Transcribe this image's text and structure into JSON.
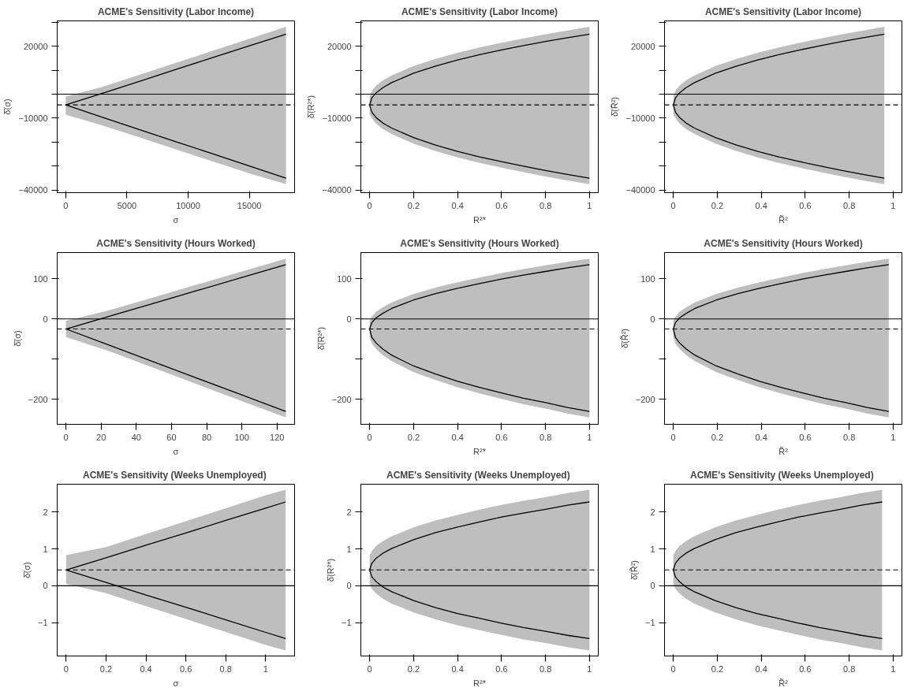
{
  "chart_data": [
    {
      "type": "line",
      "title": "ACME's Sensitivity (Labor Income)",
      "xlabel": "σ",
      "ylabel": "δ̄(σ)",
      "x": [
        0,
        3000,
        6000,
        9000,
        12000,
        15000,
        18000
      ],
      "xlim": [
        -700,
        18700
      ],
      "xticks": [
        0,
        5000,
        10000,
        15000
      ],
      "ylim": [
        -41000,
        30500
      ],
      "yticks": [
        -40000,
        {
          "value": -30000,
          "label": null
        },
        {
          "value": -20000,
          "label": null
        },
        -10000,
        {
          "value": 0,
          "label": null
        },
        {
          "value": 10000,
          "label": null
        },
        20000,
        {
          "value": 30000,
          "label": null
        }
      ],
      "grid": false,
      "series": [
        {
          "color": "#000000",
          "values": [
            -4500,
            400,
            5300,
            10300,
            15200,
            20100,
            25000
          ],
          "lower": [
            -8500,
            -13000,
            -18000,
            -23000,
            -28000,
            -33000,
            -37500
          ],
          "upper": [
            -1000,
            3000,
            8000,
            13000,
            18000,
            23000,
            28000
          ]
        },
        {
          "color": "#000000",
          "values": [
            -4500,
            -9600,
            -14700,
            -19800,
            -24800,
            -29900,
            -35000
          ]
        }
      ],
      "ref_lines": [
        {
          "axis": "y",
          "value": 0,
          "color": "#000000",
          "line_style": "solid"
        },
        {
          "axis": "y",
          "value": -4500,
          "color": "#000000",
          "line_style": "dashed"
        }
      ]
    },
    {
      "type": "line",
      "title": "ACME's Sensitivity (Labor Income)",
      "xlabel": "R²*",
      "ylabel": "δ̄(R²*)",
      "x": [
        0,
        0.01,
        0.03,
        0.06,
        0.1,
        0.2,
        0.3,
        0.4,
        0.5,
        0.6,
        0.7,
        0.8,
        0.9,
        1.0
      ],
      "xlim": [
        -0.04,
        1.04
      ],
      "xticks": [
        0,
        0.2,
        0.4,
        0.6,
        0.8,
        1.0
      ],
      "ylim": [
        -41000,
        30500
      ],
      "yticks": [
        -40000,
        {
          "value": -30000,
          "label": null
        },
        {
          "value": -20000,
          "label": null
        },
        -10000,
        {
          "value": 0,
          "label": null
        },
        {
          "value": 10000,
          "label": null
        },
        20000,
        {
          "value": 30000,
          "label": null
        }
      ],
      "grid": false,
      "series": [
        {
          "color": "#000000",
          "values": [
            -4500,
            -1500,
            600,
            2700,
            4800,
            8700,
            11700,
            14200,
            16400,
            18400,
            20200,
            21900,
            23500,
            25000
          ],
          "lower": [
            -8500,
            -10000,
            -12300,
            -14500,
            -16600,
            -20600,
            -23700,
            -26300,
            -28600,
            -30600,
            -32500,
            -34300,
            -35900,
            -37500
          ],
          "upper": [
            -1000,
            1500,
            3600,
            5700,
            7800,
            11700,
            14700,
            17200,
            19400,
            21400,
            23200,
            24900,
            26500,
            28000
          ]
        },
        {
          "color": "#000000",
          "values": [
            -4500,
            -7500,
            -9800,
            -12000,
            -14100,
            -18100,
            -21200,
            -23800,
            -26100,
            -28100,
            -30000,
            -31800,
            -33400,
            -35000
          ]
        }
      ],
      "ref_lines": [
        {
          "axis": "y",
          "value": 0,
          "color": "#000000",
          "line_style": "solid"
        },
        {
          "axis": "y",
          "value": -4500,
          "color": "#000000",
          "line_style": "dashed"
        }
      ]
    },
    {
      "type": "line",
      "title": "ACME's Sensitivity (Labor Income)",
      "xlabel": "R̃²",
      "ylabel": "δ̄(R̃²)",
      "x": [
        0,
        0.01,
        0.029,
        0.058,
        0.096,
        0.192,
        0.288,
        0.384,
        0.48,
        0.576,
        0.672,
        0.768,
        0.864,
        0.96
      ],
      "xlim": [
        -0.04,
        1.04
      ],
      "xticks": [
        0,
        0.2,
        0.4,
        0.6,
        0.8,
        1.0
      ],
      "ylim": [
        -41000,
        30500
      ],
      "yticks": [
        -40000,
        {
          "value": -30000,
          "label": null
        },
        {
          "value": -20000,
          "label": null
        },
        -10000,
        {
          "value": 0,
          "label": null
        },
        {
          "value": 10000,
          "label": null
        },
        20000,
        {
          "value": 30000,
          "label": null
        }
      ],
      "grid": false,
      "series": [
        {
          "color": "#000000",
          "values": [
            -4500,
            -1500,
            600,
            2700,
            4800,
            8700,
            11700,
            14200,
            16400,
            18400,
            20200,
            21900,
            23500,
            25000
          ],
          "lower": [
            -8500,
            -10000,
            -12300,
            -14500,
            -16600,
            -20600,
            -23700,
            -26300,
            -28600,
            -30600,
            -32500,
            -34300,
            -35900,
            -37500
          ],
          "upper": [
            -1000,
            1500,
            3600,
            5700,
            7800,
            11700,
            14700,
            17200,
            19400,
            21400,
            23200,
            24900,
            26500,
            28000
          ]
        },
        {
          "color": "#000000",
          "values": [
            -4500,
            -7500,
            -9800,
            -12000,
            -14100,
            -18100,
            -21200,
            -23800,
            -26100,
            -28100,
            -30000,
            -31800,
            -33400,
            -35000
          ]
        }
      ],
      "ref_lines": [
        {
          "axis": "y",
          "value": 0,
          "color": "#000000",
          "line_style": "solid"
        },
        {
          "axis": "y",
          "value": -4500,
          "color": "#000000",
          "line_style": "dashed"
        }
      ]
    },
    {
      "type": "line",
      "title": "ACME's Sensitivity (Hours Worked)",
      "xlabel": "σ",
      "ylabel": "δ̄(σ)",
      "x": [
        0,
        25,
        50,
        75,
        100,
        125
      ],
      "xlim": [
        -5,
        130
      ],
      "xticks": [
        0,
        20,
        40,
        60,
        80,
        100,
        120
      ],
      "ylim": [
        -262,
        165
      ],
      "yticks": [
        -200,
        {
          "value": -100,
          "label": null
        },
        0,
        100
      ],
      "grid": false,
      "series": [
        {
          "color": "#000000",
          "values": [
            -25,
            7,
            39,
            71,
            103,
            135
          ],
          "lower": [
            -45,
            -81,
            -122,
            -163,
            -204,
            -245
          ],
          "upper": [
            -5,
            22,
            54,
            86,
            118,
            150
          ]
        },
        {
          "color": "#000000",
          "values": [
            -25,
            -66,
            -107,
            -148,
            -189,
            -230
          ]
        }
      ],
      "ref_lines": [
        {
          "axis": "y",
          "value": 0,
          "color": "#000000",
          "line_style": "solid"
        },
        {
          "axis": "y",
          "value": -25,
          "color": "#000000",
          "line_style": "dashed"
        }
      ]
    },
    {
      "type": "line",
      "title": "ACME's Sensitivity (Hours Worked)",
      "xlabel": "R²*",
      "ylabel": "δ̄(R²*)",
      "x": [
        0,
        0.01,
        0.03,
        0.06,
        0.1,
        0.2,
        0.3,
        0.4,
        0.5,
        0.6,
        0.7,
        0.8,
        0.9,
        1.0
      ],
      "xlim": [
        -0.04,
        1.04
      ],
      "xticks": [
        0,
        0.2,
        0.4,
        0.6,
        0.8,
        1.0
      ],
      "ylim": [
        -262,
        165
      ],
      "yticks": [
        -200,
        {
          "value": -100,
          "label": null
        },
        0,
        100
      ],
      "grid": false,
      "series": [
        {
          "color": "#000000",
          "values": [
            -25,
            -9,
            3,
            14,
            26,
            47,
            63,
            76,
            88,
            99,
            109,
            118,
            127,
            135
          ],
          "lower": [
            -45,
            -61,
            -75,
            -90,
            -105,
            -132,
            -152,
            -170,
            -185,
            -199,
            -212,
            -223,
            -235,
            -245
          ],
          "upper": [
            -5,
            6,
            18,
            29,
            41,
            62,
            78,
            91,
            103,
            114,
            124,
            133,
            142,
            150
          ]
        },
        {
          "color": "#000000",
          "values": [
            -25,
            -46,
            -60,
            -75,
            -90,
            -117,
            -137,
            -155,
            -170,
            -184,
            -197,
            -208,
            -220,
            -230
          ]
        }
      ],
      "ref_lines": [
        {
          "axis": "y",
          "value": 0,
          "color": "#000000",
          "line_style": "solid"
        },
        {
          "axis": "y",
          "value": -25,
          "color": "#000000",
          "line_style": "dashed"
        }
      ]
    },
    {
      "type": "line",
      "title": "ACME's Sensitivity (Hours Worked)",
      "xlabel": "R̃²",
      "ylabel": "δ̄(R̃²)",
      "x": [
        0,
        0.0098,
        0.029,
        0.059,
        0.098,
        0.196,
        0.294,
        0.392,
        0.49,
        0.588,
        0.686,
        0.784,
        0.882,
        0.98
      ],
      "xlim": [
        -0.04,
        1.04
      ],
      "xticks": [
        0,
        0.2,
        0.4,
        0.6,
        0.8,
        1.0
      ],
      "ylim": [
        -262,
        165
      ],
      "yticks": [
        -200,
        {
          "value": -100,
          "label": null
        },
        0,
        100
      ],
      "grid": false,
      "series": [
        {
          "color": "#000000",
          "values": [
            -25,
            -9,
            3,
            14,
            26,
            47,
            63,
            76,
            88,
            99,
            109,
            118,
            127,
            135
          ],
          "lower": [
            -45,
            -61,
            -75,
            -90,
            -105,
            -132,
            -152,
            -170,
            -185,
            -199,
            -212,
            -223,
            -235,
            -245
          ],
          "upper": [
            -5,
            6,
            18,
            29,
            41,
            62,
            78,
            91,
            103,
            114,
            124,
            133,
            142,
            150
          ]
        },
        {
          "color": "#000000",
          "values": [
            -25,
            -46,
            -60,
            -75,
            -90,
            -117,
            -137,
            -155,
            -170,
            -184,
            -197,
            -208,
            -220,
            -230
          ]
        }
      ],
      "ref_lines": [
        {
          "axis": "y",
          "value": 0,
          "color": "#000000",
          "line_style": "solid"
        },
        {
          "axis": "y",
          "value": -25,
          "color": "#000000",
          "line_style": "dashed"
        }
      ]
    },
    {
      "type": "line",
      "title": "ACME's  Sensitivity (Weeks Unemployed)",
      "xlabel": "σ",
      "ylabel": "δ̄(σ)",
      "x": [
        0,
        0.2,
        0.4,
        0.6,
        0.8,
        1.0,
        1.1
      ],
      "xlim": [
        -0.045,
        1.145
      ],
      "xticks": [
        0,
        0.2,
        0.4,
        0.6,
        0.8,
        1.0
      ],
      "ylim": [
        -1.9,
        2.75
      ],
      "yticks": [
        -1,
        0,
        1,
        2
      ],
      "grid": false,
      "series": [
        {
          "color": "#000000",
          "values": [
            0.43,
            0.76,
            1.1,
            1.43,
            1.77,
            2.1,
            2.27
          ],
          "lower": [
            0.05,
            -0.2,
            -0.55,
            -0.9,
            -1.25,
            -1.6,
            -1.75
          ],
          "upper": [
            0.83,
            1.05,
            1.4,
            1.75,
            2.1,
            2.45,
            2.6
          ]
        },
        {
          "color": "#000000",
          "values": [
            0.43,
            0.09,
            -0.25,
            -0.58,
            -0.92,
            -1.26,
            -1.43
          ]
        }
      ],
      "ref_lines": [
        {
          "axis": "y",
          "value": 0,
          "color": "#000000",
          "line_style": "solid"
        },
        {
          "axis": "y",
          "value": 0.43,
          "color": "#000000",
          "line_style": "dashed"
        }
      ]
    },
    {
      "type": "line",
      "title": "ACME's  Sensitivity (Weeks Unemployed)",
      "xlabel": "R²*",
      "ylabel": "δ̄(R²*)",
      "x": [
        0,
        0.01,
        0.03,
        0.06,
        0.1,
        0.2,
        0.3,
        0.4,
        0.5,
        0.6,
        0.7,
        0.8,
        0.9,
        1.0
      ],
      "xlim": [
        -0.04,
        1.04
      ],
      "xticks": [
        0,
        0.2,
        0.4,
        0.6,
        0.8,
        1.0
      ],
      "ylim": [
        -1.9,
        2.75
      ],
      "yticks": [
        -1,
        0,
        1,
        2
      ],
      "grid": false,
      "series": [
        {
          "color": "#000000",
          "values": [
            0.43,
            0.61,
            0.75,
            0.88,
            1.01,
            1.25,
            1.44,
            1.59,
            1.73,
            1.86,
            1.97,
            2.07,
            2.18,
            2.27
          ],
          "lower": [
            0.05,
            -0.08,
            -0.21,
            -0.35,
            -0.48,
            -0.72,
            -0.91,
            -1.07,
            -1.2,
            -1.33,
            -1.45,
            -1.55,
            -1.66,
            -1.75
          ],
          "upper": [
            0.83,
            0.94,
            1.08,
            1.21,
            1.34,
            1.58,
            1.77,
            1.92,
            2.06,
            2.19,
            2.3,
            2.4,
            2.51,
            2.6
          ]
        },
        {
          "color": "#000000",
          "values": [
            0.43,
            0.24,
            0.11,
            -0.03,
            -0.16,
            -0.4,
            -0.59,
            -0.75,
            -0.88,
            -1.01,
            -1.13,
            -1.23,
            -1.34,
            -1.43
          ]
        }
      ],
      "ref_lines": [
        {
          "axis": "y",
          "value": 0,
          "color": "#000000",
          "line_style": "solid"
        },
        {
          "axis": "y",
          "value": 0.43,
          "color": "#000000",
          "line_style": "dashed"
        }
      ]
    },
    {
      "type": "line",
      "title": "ACME's  Sensitivity (Weeks Unemployed)",
      "xlabel": "R̃²",
      "ylabel": "δ̄(R̃²)",
      "x": [
        0,
        0.0095,
        0.0285,
        0.057,
        0.095,
        0.19,
        0.285,
        0.38,
        0.475,
        0.57,
        0.665,
        0.76,
        0.855,
        0.95
      ],
      "xlim": [
        -0.04,
        1.04
      ],
      "xticks": [
        0,
        0.2,
        0.4,
        0.6,
        0.8,
        1.0
      ],
      "ylim": [
        -1.9,
        2.75
      ],
      "yticks": [
        -1,
        0,
        1,
        2
      ],
      "grid": false,
      "series": [
        {
          "color": "#000000",
          "values": [
            0.43,
            0.61,
            0.75,
            0.88,
            1.01,
            1.25,
            1.44,
            1.59,
            1.73,
            1.86,
            1.97,
            2.07,
            2.18,
            2.27
          ],
          "lower": [
            0.05,
            -0.08,
            -0.21,
            -0.35,
            -0.48,
            -0.72,
            -0.91,
            -1.07,
            -1.2,
            -1.33,
            -1.45,
            -1.55,
            -1.66,
            -1.75
          ],
          "upper": [
            0.83,
            0.94,
            1.08,
            1.21,
            1.34,
            1.58,
            1.77,
            1.92,
            2.06,
            2.19,
            2.3,
            2.4,
            2.51,
            2.6
          ]
        },
        {
          "color": "#000000",
          "values": [
            0.43,
            0.24,
            0.11,
            -0.03,
            -0.16,
            -0.4,
            -0.59,
            -0.75,
            -0.88,
            -1.01,
            -1.13,
            -1.23,
            -1.34,
            -1.43
          ]
        }
      ],
      "ref_lines": [
        {
          "axis": "y",
          "value": 0,
          "color": "#000000",
          "line_style": "solid"
        },
        {
          "axis": "y",
          "value": 0.43,
          "color": "#000000",
          "line_style": "dashed"
        }
      ]
    }
  ]
}
